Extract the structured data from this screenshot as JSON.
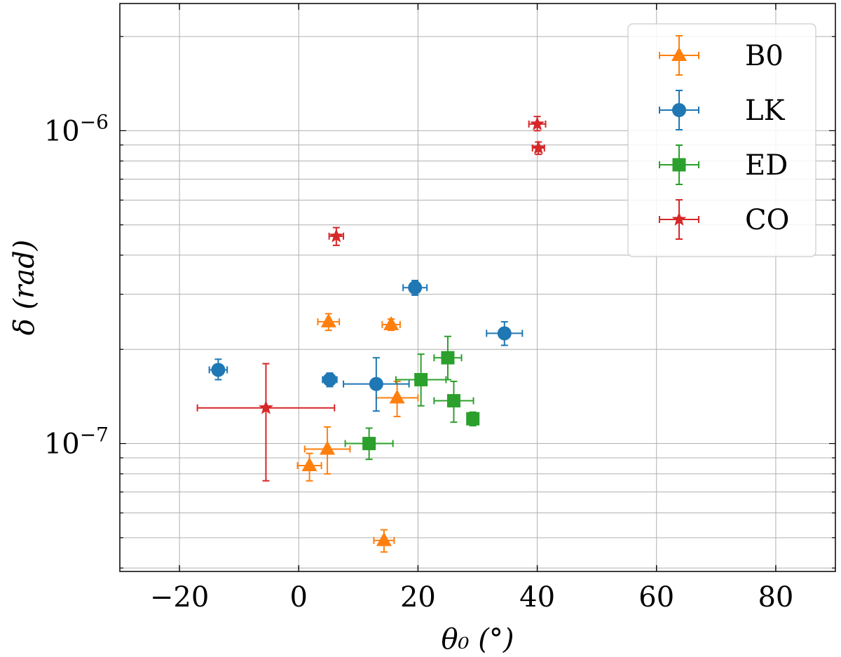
{
  "chart_data": {
    "type": "scatter",
    "title": "",
    "xlabel": "θ₀ (°)",
    "ylabel": "δ (rad)",
    "xlim": [
      -30,
      90
    ],
    "ylim": [
      3.9e-08,
      2.55e-06
    ],
    "yscale": "log",
    "grid": true,
    "legend_position": "top-right",
    "x_ticks": [
      {
        "value": -20,
        "label": "−20"
      },
      {
        "value": 0,
        "label": "0"
      },
      {
        "value": 20,
        "label": "20"
      },
      {
        "value": 40,
        "label": "40"
      },
      {
        "value": 60,
        "label": "60"
      },
      {
        "value": 80,
        "label": "80"
      }
    ],
    "y_ticks": [
      {
        "value": 1e-07,
        "base": "10",
        "exponent": "−7"
      },
      {
        "value": 1e-06,
        "base": "10",
        "exponent": "−6"
      }
    ],
    "series": [
      {
        "name": "B0",
        "color": "#ff7f0e",
        "marker": "triangle",
        "points": [
          {
            "x": 5.0,
            "y": 2.45e-07,
            "xerr": 1.8,
            "ylo": 2.3e-07,
            "yhi": 2.6e-07
          },
          {
            "x": 15.5,
            "y": 2.4e-07,
            "xerr": 1.5,
            "ylo": 2.3e-07,
            "yhi": 2.5e-07
          },
          {
            "x": 16.5,
            "y": 1.4e-07,
            "xerr": 3.5,
            "ylo": 1.22e-07,
            "yhi": 1.58e-07
          },
          {
            "x": 4.8,
            "y": 9.6e-08,
            "xerr": 3.8,
            "ylo": 8e-08,
            "yhi": 1.13e-07
          },
          {
            "x": 1.8,
            "y": 8.5e-08,
            "xerr": 2.0,
            "ylo": 7.6e-08,
            "yhi": 9.3e-08
          },
          {
            "x": 14.3,
            "y": 4.9e-08,
            "xerr": 1.7,
            "ylo": 4.5e-08,
            "yhi": 5.3e-08
          }
        ]
      },
      {
        "name": "LK",
        "color": "#1f77b4",
        "marker": "circle",
        "points": [
          {
            "x": 19.5,
            "y": 3.15e-07,
            "xerr": 2.0,
            "ylo": 2.98e-07,
            "yhi": 3.32e-07
          },
          {
            "x": 34.5,
            "y": 2.25e-07,
            "xerr": 3.0,
            "ylo": 2.06e-07,
            "yhi": 2.45e-07
          },
          {
            "x": -13.5,
            "y": 1.72e-07,
            "xerr": 1.5,
            "ylo": 1.6e-07,
            "yhi": 1.86e-07
          },
          {
            "x": 5.2,
            "y": 1.6e-07,
            "xerr": 1.2,
            "ylo": 1.52e-07,
            "yhi": 1.68e-07
          },
          {
            "x": 13.0,
            "y": 1.55e-07,
            "xerr": 5.5,
            "ylo": 1.27e-07,
            "yhi": 1.88e-07
          }
        ]
      },
      {
        "name": "ED",
        "color": "#2ca02c",
        "marker": "square",
        "points": [
          {
            "x": 25.0,
            "y": 1.88e-07,
            "xerr": 2.3,
            "ylo": 1.6e-07,
            "yhi": 2.2e-07
          },
          {
            "x": 20.5,
            "y": 1.6e-07,
            "xerr": 4.2,
            "ylo": 1.32e-07,
            "yhi": 1.93e-07
          },
          {
            "x": 26.0,
            "y": 1.37e-07,
            "xerr": 3.3,
            "ylo": 1.17e-07,
            "yhi": 1.58e-07
          },
          {
            "x": 29.2,
            "y": 1.2e-07,
            "xerr": 0.8,
            "ylo": 1.14e-07,
            "yhi": 1.26e-07
          },
          {
            "x": 11.8,
            "y": 1e-07,
            "xerr": 4.0,
            "ylo": 8.9e-08,
            "yhi": 1.12e-07
          }
        ]
      },
      {
        "name": "CO",
        "color": "#d62728",
        "marker": "star",
        "points": [
          {
            "x": 40.0,
            "y": 1.05e-06,
            "xerr": 1.4,
            "ylo": 1e-06,
            "yhi": 1.11e-06
          },
          {
            "x": 40.2,
            "y": 8.8e-07,
            "xerr": 1.0,
            "ylo": 8.4e-07,
            "yhi": 9.2e-07
          },
          {
            "x": 6.3,
            "y": 4.6e-07,
            "xerr": 1.2,
            "ylo": 4.3e-07,
            "yhi": 4.9e-07
          },
          {
            "x": -5.5,
            "y": 1.3e-07,
            "xerr": 11.5,
            "ylo": 7.6e-08,
            "yhi": 1.8e-07
          }
        ]
      }
    ]
  }
}
